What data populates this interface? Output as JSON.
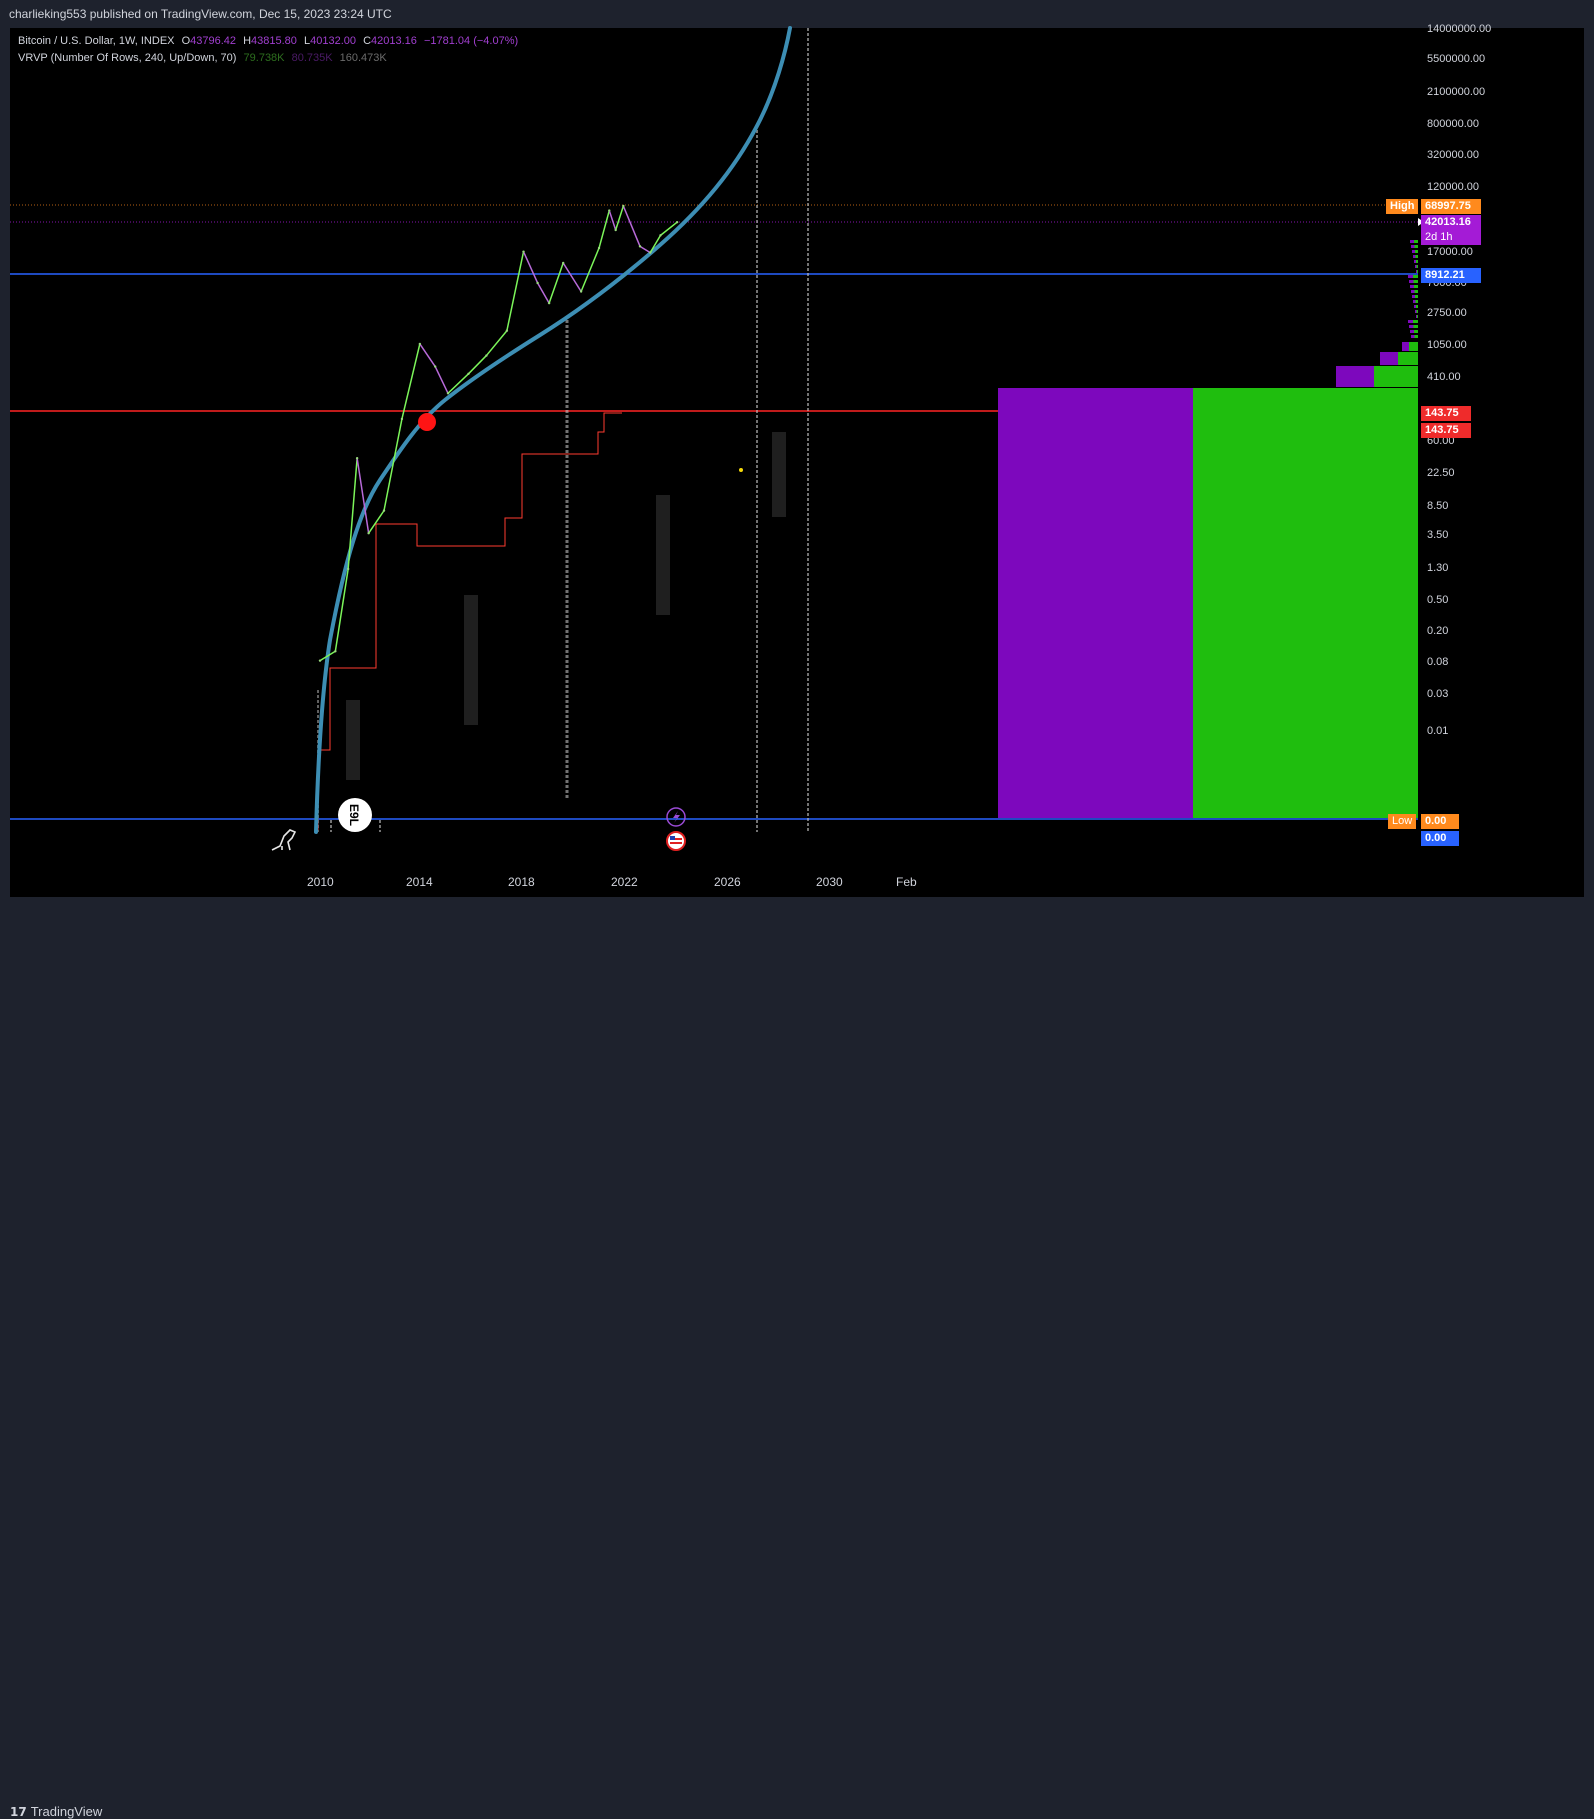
{
  "header": {
    "publisher": "charlieking553 published on TradingView.com, Dec 15, 2023 23:24 UTC"
  },
  "legend": {
    "symbol": "Bitcoin / U.S. Dollar, 1W, INDEX",
    "o_label": "O",
    "o_value": "43796.42",
    "h_label": "H",
    "h_value": "43815.80",
    "l_label": "L",
    "l_value": "40132.00",
    "c_label": "C",
    "c_value": "42013.16",
    "change": "−1781.04 (−4.07%)",
    "vrvp": "VRVP (Number Of Rows, 240, Up/Down, 70)",
    "vrvp_up": "79.738K",
    "vrvp_down": "80.735K",
    "vrvp_total": "160.473K"
  },
  "footer": {
    "brand": "TradingView",
    "brand_mark": "17"
  },
  "colors": {
    "background": "#000000",
    "panel": "#1e222d",
    "up_volume": "#1fbe0e",
    "down_volume": "#7d08bd",
    "curve": "#3d8eb4",
    "price_up": "#7cf55a",
    "price_down": "#b86ad9",
    "blue_line": "#2962ff",
    "red_line": "#ff2424",
    "high_tag": "#ff8a1d",
    "price_tag": "#a41bd6",
    "blue_tag": "#2862ff",
    "red_tag": "#ef2b2b"
  },
  "chart_data": {
    "type": "line",
    "y_scale": "log",
    "y_ticks": [
      "14000000.00",
      "5500000.00",
      "2100000.00",
      "800000.00",
      "320000.00",
      "120000.00",
      "17000.00",
      "7000.00",
      "2750.00",
      "1050.00",
      "410.00",
      "60.00",
      "22.50",
      "8.50",
      "3.50",
      "1.30",
      "0.50",
      "0.20",
      "0.08",
      "0.03",
      "0.01"
    ],
    "x_ticks": [
      "2010",
      "2014",
      "2018",
      "2022",
      "2026",
      "2030",
      "Feb"
    ],
    "price_tags": {
      "high_label": "High",
      "high_value": "68997.75",
      "last_value": "42013.16",
      "countdown": "2d 1h",
      "blue_line_value": "8912.21",
      "red_line_value_1": "143.75",
      "red_line_value_2": "143.75",
      "low_label": "Low",
      "low_value": "0.00",
      "zero_value": "0.00"
    },
    "series": [
      {
        "name": "Bitcoin / U.S. Dollar",
        "points": [
          [
            2010.0,
            0.06
          ],
          [
            2010.6,
            0.08
          ],
          [
            2011.1,
            1.0
          ],
          [
            2011.45,
            30
          ],
          [
            2011.9,
            3
          ],
          [
            2012.5,
            6
          ],
          [
            2013.2,
            100
          ],
          [
            2013.9,
            1000
          ],
          [
            2014.5,
            500
          ],
          [
            2015.0,
            220
          ],
          [
            2015.8,
            400
          ],
          [
            2016.5,
            700
          ],
          [
            2017.3,
            1500
          ],
          [
            2017.95,
            17000
          ],
          [
            2018.5,
            6500
          ],
          [
            2018.95,
            3500
          ],
          [
            2019.5,
            12000
          ],
          [
            2020.2,
            5000
          ],
          [
            2020.9,
            19000
          ],
          [
            2021.3,
            60000
          ],
          [
            2021.55,
            33000
          ],
          [
            2021.85,
            69000
          ],
          [
            2022.5,
            20000
          ],
          [
            2022.9,
            16500
          ],
          [
            2023.3,
            28000
          ],
          [
            2023.95,
            42013.16
          ]
        ]
      }
    ]
  },
  "annotations": {
    "curve_dot": "red circle",
    "icons": [
      "lightning-icon",
      "us-flag-icon",
      "dinosaur-icon"
    ],
    "badge_text": "E9L"
  }
}
